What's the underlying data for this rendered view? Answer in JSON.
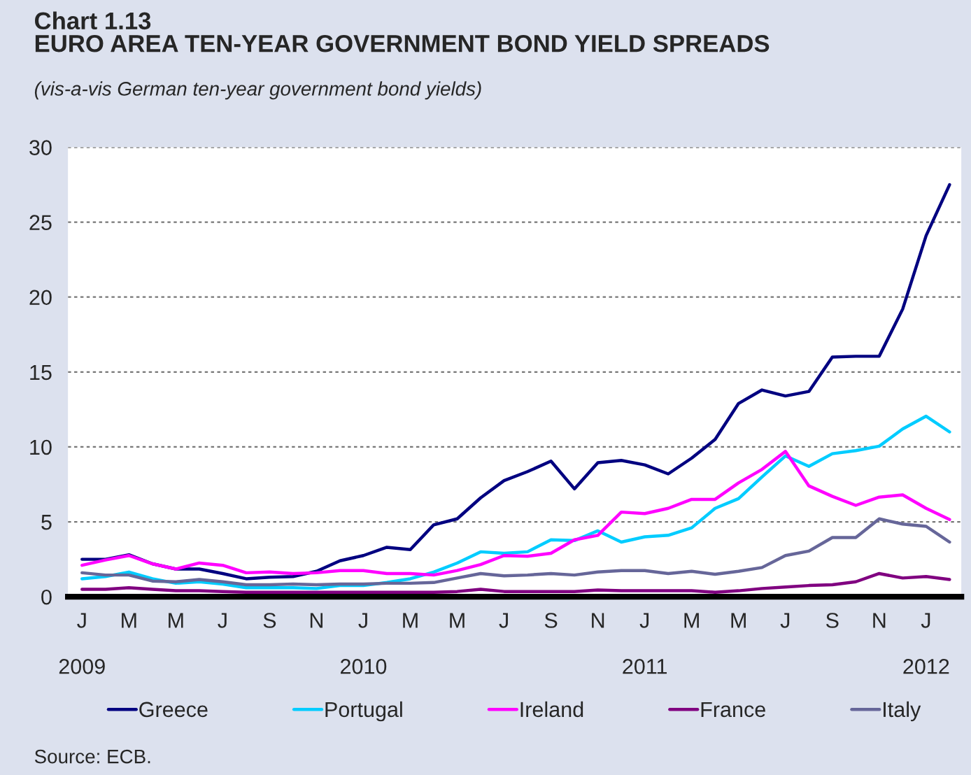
{
  "chart_data": {
    "type": "line",
    "title": "Chart 1.13\nEURO AREA TEN-YEAR GOVERNMENT BOND YIELD SPREADS",
    "subtitle": "(vis-a-vis German ten-year government bond yields)",
    "annotations": [
      "Source: ECB."
    ],
    "categories": [
      "J\n\n2009",
      null,
      "M",
      null,
      "M",
      null,
      "J",
      null,
      "S",
      null,
      "N",
      null,
      "J\n\n2010",
      null,
      "M",
      null,
      "M",
      null,
      "J",
      null,
      "S",
      null,
      "N",
      null,
      "J\n\n2011",
      null,
      "M",
      null,
      "M",
      null,
      "J",
      null,
      "S",
      null,
      "N",
      null,
      "J\n\n2012",
      null
    ],
    "series": [
      {
        "name": "Greece",
        "color": "#000080",
        "values": [
          2.5,
          2.5,
          2.8,
          2.2,
          1.85,
          1.85,
          1.55,
          1.2,
          1.3,
          1.35,
          1.7,
          2.4,
          2.75,
          3.3,
          3.15,
          4.8,
          5.2,
          6.6,
          7.75,
          8.35,
          9.05,
          7.2,
          8.95,
          9.1,
          8.8,
          8.2,
          9.25,
          10.5,
          12.9,
          13.8,
          13.4,
          13.7,
          16.0,
          16.05,
          16.05,
          19.2,
          24.1,
          27.5
        ]
      },
      {
        "name": "Portugal",
        "color": "#00ccff",
        "values": [
          1.2,
          1.35,
          1.65,
          1.2,
          0.9,
          1.0,
          0.85,
          0.6,
          0.6,
          0.6,
          0.55,
          0.75,
          0.75,
          0.95,
          1.2,
          1.65,
          2.25,
          3.0,
          2.9,
          3.0,
          3.8,
          3.75,
          4.4,
          3.65,
          4.0,
          4.1,
          4.6,
          5.9,
          6.55,
          8.0,
          9.4,
          8.7,
          9.55,
          9.75,
          10.05,
          11.2,
          12.05,
          11.0
        ]
      },
      {
        "name": "Ireland",
        "color": "#ff00ff",
        "values": [
          2.1,
          2.45,
          2.75,
          2.2,
          1.85,
          2.25,
          2.1,
          1.6,
          1.65,
          1.55,
          1.6,
          1.75,
          1.75,
          1.55,
          1.55,
          1.45,
          1.75,
          2.15,
          2.75,
          2.7,
          2.9,
          3.8,
          4.1,
          5.65,
          5.55,
          5.9,
          6.5,
          6.5,
          7.6,
          8.5,
          9.7,
          7.4,
          6.7,
          6.1,
          6.65,
          6.8,
          5.9,
          5.15
        ]
      },
      {
        "name": "France",
        "color": "#800080",
        "values": [
          0.5,
          0.5,
          0.6,
          0.5,
          0.4,
          0.4,
          0.35,
          0.3,
          0.3,
          0.3,
          0.3,
          0.3,
          0.3,
          0.3,
          0.3,
          0.3,
          0.35,
          0.5,
          0.35,
          0.35,
          0.35,
          0.35,
          0.45,
          0.4,
          0.4,
          0.4,
          0.4,
          0.3,
          0.4,
          0.55,
          0.65,
          0.75,
          0.8,
          1.0,
          1.55,
          1.25,
          1.35,
          1.15
        ]
      },
      {
        "name": "Italy",
        "color": "#666699",
        "values": [
          1.6,
          1.45,
          1.45,
          1.05,
          1.0,
          1.15,
          1.0,
          0.8,
          0.8,
          0.85,
          0.8,
          0.85,
          0.85,
          0.9,
          0.9,
          0.95,
          1.25,
          1.55,
          1.4,
          1.45,
          1.55,
          1.45,
          1.65,
          1.75,
          1.75,
          1.55,
          1.7,
          1.5,
          1.7,
          1.95,
          2.75,
          3.05,
          3.95,
          3.95,
          5.2,
          4.85,
          4.7,
          3.65
        ]
      }
    ],
    "ylim": [
      0,
      30
    ],
    "yticks": [
      0,
      5,
      10,
      15,
      20,
      25,
      30
    ],
    "grid": "y",
    "legend": "bottom",
    "line_style": "solid",
    "marker": "none"
  }
}
